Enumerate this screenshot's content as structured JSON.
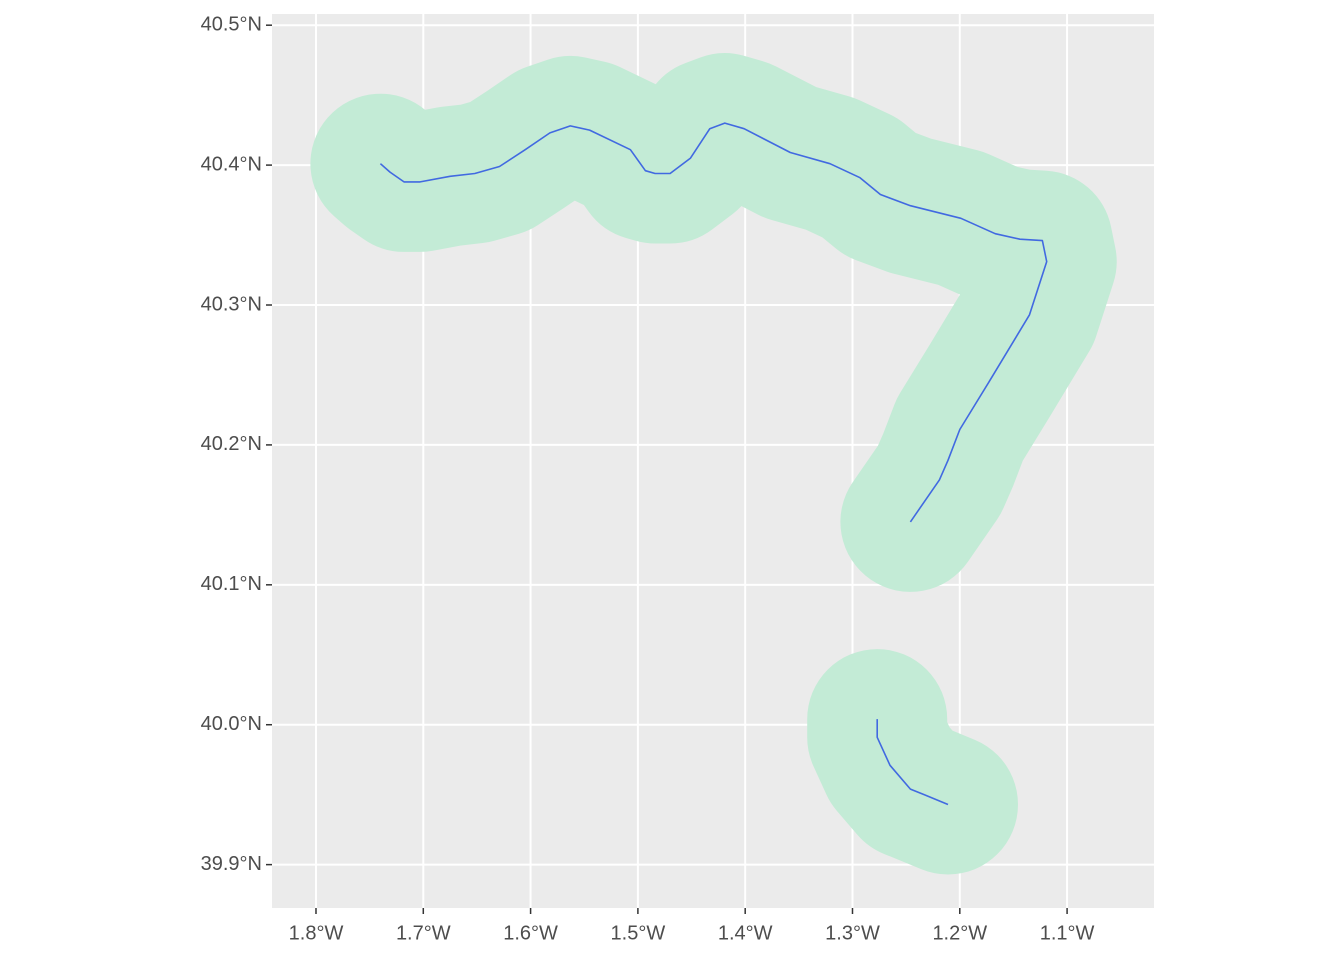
{
  "chart_data": {
    "type": "line",
    "grid": true,
    "panel_color": "#ebebeb",
    "buffer_color": "#c3ebd6",
    "xlim": [
      -1.841,
      -1.019
    ],
    "ylim": [
      39.869,
      40.508
    ],
    "xticks": [
      {
        "value": -1.8,
        "label": "1.8°W"
      },
      {
        "value": -1.7,
        "label": "1.7°W"
      },
      {
        "value": -1.6,
        "label": "1.6°W"
      },
      {
        "value": -1.5,
        "label": "1.5°W"
      },
      {
        "value": -1.4,
        "label": "1.4°W"
      },
      {
        "value": -1.3,
        "label": "1.3°W"
      },
      {
        "value": -1.2,
        "label": "1.2°W"
      },
      {
        "value": -1.1,
        "label": "1.1°W"
      }
    ],
    "yticks": [
      {
        "value": 39.9,
        "label": "39.9°N"
      },
      {
        "value": 40.0,
        "label": "40.0°N"
      },
      {
        "value": 40.1,
        "label": "40.1°N"
      },
      {
        "value": 40.2,
        "label": "40.2°N"
      },
      {
        "value": 40.3,
        "label": "40.3°N"
      },
      {
        "value": 40.4,
        "label": "40.4°N"
      },
      {
        "value": 40.5,
        "label": "40.5°N"
      }
    ],
    "series": [
      {
        "color": "#4169e1",
        "x": [
          -1.74,
          -1.731,
          -1.718,
          -1.703,
          -1.675,
          -1.652,
          -1.629,
          -1.605,
          -1.582,
          -1.563,
          -1.545,
          -1.507,
          -1.493,
          -1.484,
          -1.47,
          -1.451,
          -1.433,
          -1.419,
          -1.401,
          -1.358,
          -1.321,
          -1.293,
          -1.274,
          -1.246,
          -1.199,
          -1.167,
          -1.144,
          -1.123,
          -1.119,
          -1.135,
          -1.172,
          -1.2,
          -1.211,
          -1.219,
          -1.246,
          null,
          -1.277,
          -1.277,
          -1.265,
          -1.246,
          -1.233,
          -1.211
        ],
        "values": [
          40.401,
          40.395,
          40.388,
          40.388,
          40.392,
          40.394,
          40.399,
          40.411,
          40.423,
          40.428,
          40.425,
          40.411,
          40.396,
          40.394,
          40.394,
          40.405,
          40.426,
          40.43,
          40.426,
          40.409,
          40.401,
          40.391,
          40.379,
          40.371,
          40.362,
          40.351,
          40.347,
          40.346,
          40.331,
          40.293,
          40.246,
          40.211,
          40.189,
          40.175,
          40.145,
          null,
          40.004,
          39.991,
          39.971,
          39.954,
          39.95,
          39.943
        ]
      }
    ]
  }
}
